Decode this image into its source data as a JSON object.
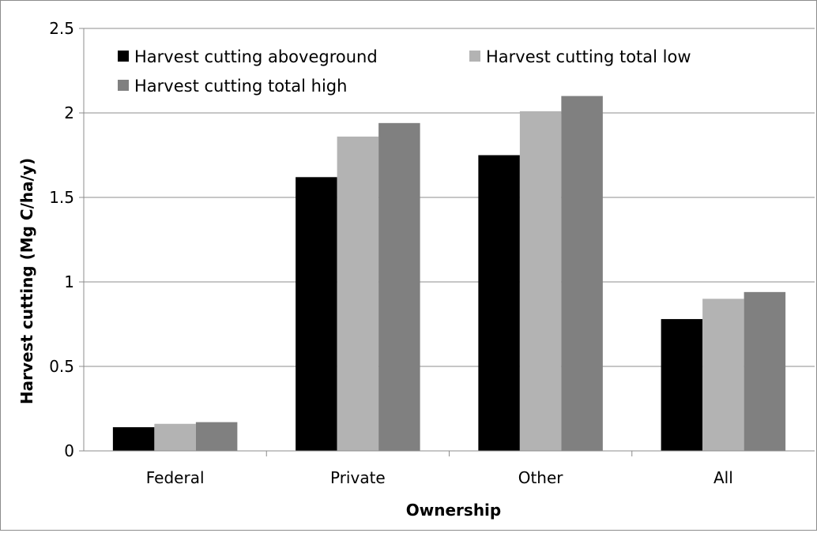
{
  "chart_data": {
    "type": "bar",
    "title": "",
    "xlabel": "Ownership",
    "ylabel": "Harvest cutting (Mg C/ha/y)",
    "categories": [
      "Federal",
      "Private",
      "Other",
      "All"
    ],
    "series": [
      {
        "name": "Harvest cutting aboveground",
        "values": [
          0.14,
          1.62,
          1.75,
          0.78
        ],
        "color": "#000000"
      },
      {
        "name": "Harvest cutting total low",
        "values": [
          0.16,
          1.86,
          2.01,
          0.9
        ],
        "color": "#b3b3b3"
      },
      {
        "name": "Harvest cutting total high",
        "values": [
          0.17,
          1.94,
          2.1,
          0.94
        ],
        "color": "#808080"
      }
    ],
    "ylim": [
      0,
      2.5
    ],
    "yticks": [
      "0",
      "0.5",
      "1",
      "1.5",
      "2",
      "2.5"
    ],
    "ytick_values": [
      0,
      0.5,
      1,
      1.5,
      2,
      2.5
    ],
    "grid": true,
    "legend_position": "top-left, inside plot"
  }
}
